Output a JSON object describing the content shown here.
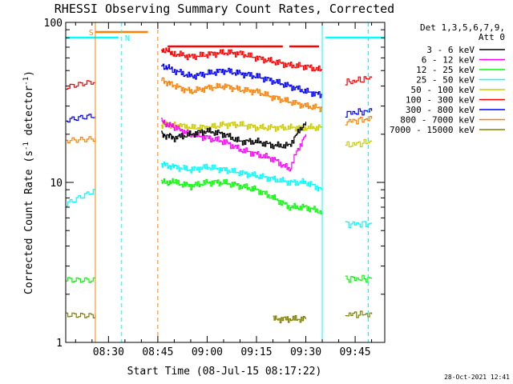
{
  "chart_data": {
    "type": "line",
    "title": "RHESSI Observing Summary Count Rates, Corrected",
    "xlabel": "Start Time (08-Jul-15 08:17:22)",
    "ylabel": "Corrected Count Rate (s⁻¹ detector⁻¹)",
    "ylabel_parts": {
      "main": "Corrected Count Rate (s",
      "exp1": "-1",
      "mid": " detector",
      "exp2": "-1",
      "end": ")"
    },
    "yscale": "log",
    "ylim": [
      1,
      100
    ],
    "xlim": [
      "08:17",
      "09:54"
    ],
    "x_tick_labels": [
      "08:30",
      "08:45",
      "09:00",
      "09:15",
      "09:30",
      "09:45"
    ],
    "y_tick_labels": [
      "1",
      "10",
      "100"
    ],
    "legend": {
      "placement": "right",
      "header_line1": "Det 1,3,5,6,7,9,",
      "header_line2": "Att 0"
    },
    "flags": {
      "s_label": "S",
      "n_label": "N"
    },
    "timestamp": "28-Oct-2021 12:41",
    "data_gaps": [
      [
        "08:27",
        "08:46"
      ],
      [
        "09:35",
        "09:42"
      ]
    ],
    "series": [
      {
        "name": "3 - 6 keV",
        "color": "#000000",
        "x": [
          "08:46",
          "08:50",
          "08:55",
          "09:00",
          "09:05",
          "09:10",
          "09:15",
          "09:20",
          "09:25",
          "09:30"
        ],
        "values": [
          20,
          19,
          20,
          21,
          20,
          18,
          18,
          17,
          17,
          24
        ]
      },
      {
        "name": "6 - 12 keV",
        "color": "#ff00ff",
        "x": [
          "08:46",
          "08:50",
          "08:55",
          "09:00",
          "09:05",
          "09:10",
          "09:15",
          "09:20",
          "09:25",
          "09:30"
        ],
        "values": [
          24,
          22,
          20,
          19,
          18,
          16,
          15,
          14,
          12,
          20
        ]
      },
      {
        "name": "12 - 25 keV",
        "color": "#00ff00",
        "x": [
          "08:17",
          "08:26",
          "08:46",
          "08:50",
          "08:55",
          "09:00",
          "09:05",
          "09:10",
          "09:15",
          "09:20",
          "09:25",
          "09:30",
          "09:35",
          "09:42",
          "09:50"
        ],
        "values": [
          2.5,
          2.5,
          10,
          10,
          9.5,
          10,
          10,
          9.5,
          9,
          8,
          7,
          7,
          6.5,
          2.5,
          2.5
        ]
      },
      {
        "name": "25 - 50 keV",
        "color": "#00ffff",
        "x": [
          "08:17",
          "08:26",
          "08:46",
          "08:50",
          "08:55",
          "09:00",
          "09:05",
          "09:10",
          "09:15",
          "09:20",
          "09:25",
          "09:30",
          "09:35",
          "09:42",
          "09:50"
        ],
        "values": [
          7.5,
          9,
          13,
          12.5,
          12,
          12.5,
          12,
          11.5,
          11,
          10.5,
          10,
          10,
          9,
          5.5,
          5.5
        ]
      },
      {
        "name": "50 - 100 keV",
        "color": "#cccc00",
        "x": [
          "08:46",
          "08:50",
          "08:55",
          "09:00",
          "09:05",
          "09:10",
          "09:15",
          "09:20",
          "09:25",
          "09:30",
          "09:35",
          "09:42",
          "09:50"
        ],
        "values": [
          23,
          23,
          22,
          22,
          23,
          23,
          22,
          22,
          22,
          22,
          22,
          17,
          18
        ]
      },
      {
        "name": "100 - 300 keV",
        "color": "#ff0000",
        "x": [
          "08:17",
          "08:26",
          "08:46",
          "08:50",
          "08:55",
          "09:00",
          "09:05",
          "09:10",
          "09:15",
          "09:20",
          "09:25",
          "09:30",
          "09:35",
          "09:42",
          "09:50"
        ],
        "values": [
          39,
          42,
          68,
          64,
          61,
          63,
          65,
          64,
          60,
          57,
          54,
          53,
          50,
          42,
          45
        ]
      },
      {
        "name": "300 - 800 keV",
        "color": "#0000ff",
        "x": [
          "08:17",
          "08:26",
          "08:46",
          "08:50",
          "08:55",
          "09:00",
          "09:05",
          "09:10",
          "09:15",
          "09:20",
          "09:25",
          "09:30",
          "09:35",
          "09:42",
          "09:50"
        ],
        "values": [
          24,
          26,
          54,
          50,
          46,
          48,
          50,
          48,
          46,
          43,
          40,
          37,
          35,
          27,
          28
        ]
      },
      {
        "name": "800 - 7000 keV",
        "color": "#ff8000",
        "x": [
          "08:17",
          "08:26",
          "08:46",
          "08:50",
          "08:55",
          "09:00",
          "09:05",
          "09:10",
          "09:15",
          "09:20",
          "09:25",
          "09:30",
          "09:35",
          "09:42",
          "09:50"
        ],
        "values": [
          18,
          19,
          44,
          40,
          37,
          39,
          40,
          38,
          37,
          34,
          32,
          30,
          29,
          24,
          25
        ]
      },
      {
        "name": "7000 - 15000 keV",
        "color": "#808000",
        "x": [
          "08:17",
          "08:26",
          "09:20",
          "09:25",
          "09:30",
          "09:42",
          "09:50"
        ],
        "values": [
          1.5,
          1.5,
          1.4,
          1.4,
          1.4,
          1.5,
          1.5
        ]
      }
    ]
  }
}
